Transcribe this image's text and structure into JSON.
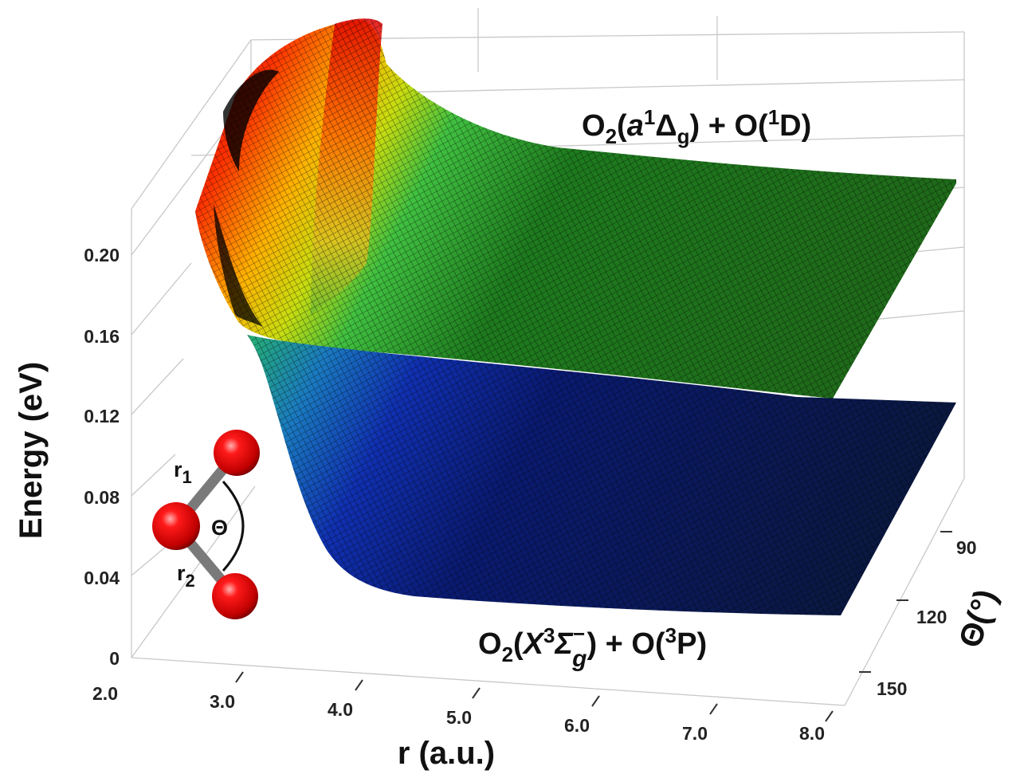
{
  "chart_data": {
    "type": "surface3d",
    "x_axis": {
      "label": "r (a.u.)",
      "ticks": [
        "2.0",
        "3.0",
        "4.0",
        "5.0",
        "6.0",
        "7.0",
        "8.0"
      ],
      "range": [
        2.0,
        8.0
      ]
    },
    "z_axis": {
      "label": "Energy (eV)",
      "ticks": [
        "0",
        "0.04",
        "0.08",
        "0.12",
        "0.16",
        "0.20"
      ],
      "range": [
        0,
        0.22
      ]
    },
    "y_axis": {
      "label": "Θ(°)",
      "ticks": [
        "90",
        "120",
        "150"
      ]
    },
    "grid": true,
    "surfaces": [
      {
        "state": {
          "main": "O",
          "sub": "2",
          "open": "(",
          "sym": "a",
          "sup": "1",
          "term": "Δ",
          "termsub": "g",
          "close": ") + O(",
          "sup2": "1",
          "end": "D)"
        },
        "colormap": "jet",
        "asymptotic_energy": 0.17
      },
      {
        "state": {
          "main": "O",
          "sub": "2",
          "open": "(",
          "sym": "X",
          "sup": "3",
          "term": "Σ",
          "termsup": "−",
          "termsub": "g",
          "close": ")  + O(",
          "sup2": "3",
          "end": "P)"
        },
        "colormap": "jet",
        "asymptotic_energy": 0.0
      }
    ]
  },
  "molecule": {
    "bond1_label": "r",
    "bond1_sub": "1",
    "bond2_label": "r",
    "bond2_sub": "2",
    "angle_label": "Θ",
    "atom_color": "#e00000",
    "bond_color": "#8a8a8a"
  }
}
